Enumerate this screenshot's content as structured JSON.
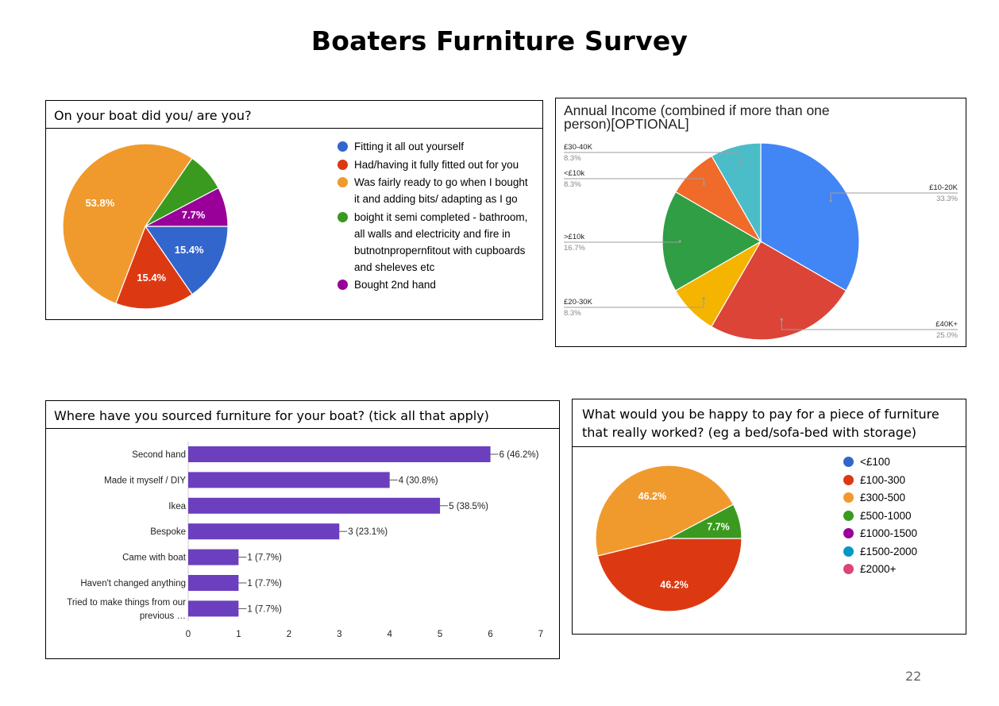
{
  "page": {
    "title": "Boaters Furniture Survey",
    "page_number": "22"
  },
  "colors": {
    "blue": "#3366cc",
    "red": "#dc3912",
    "orange": "#f09a2e",
    "green": "#3a9a1f",
    "purple": "#990099",
    "teal": "#0099c6",
    "pink": "#dd4477",
    "bar": "#6b3fbd"
  },
  "q1": {
    "question": "On your boat did you/ are you?"
  },
  "q2": {
    "question": "Annual Income (combined if more than one person)[OPTIONAL]"
  },
  "q3": {
    "question": "Where have you sourced furniture for your boat? (tick all that apply)"
  },
  "q4": {
    "question": "What would you be happy to pay for a piece of furniture that really worked? (eg a bed/sofa-bed with storage)"
  },
  "chart_data": [
    {
      "type": "pie",
      "title": "On your boat did you/ are you?",
      "labels": [
        "Fitting it all out yourself",
        "Had/having it fully fitted out for you",
        "Was fairly ready to go when I bought it and adding bits/ adapting as I go",
        "boight it semi completed - bathroom, all walls and electricity and fire in butnotnpropernfitout with cupboards and sheleves etc",
        "Bought 2nd hand"
      ],
      "legend_lines": [
        [
          "Fitting it all out yourself"
        ],
        [
          "Had/having it fully fitted out for you"
        ],
        [
          "Was fairly ready to go when I bought",
          "it and adding bits/ adapting as I go"
        ],
        [
          "boight it semi completed - bathroom,",
          "all walls and electricity and fire in",
          "butnotnpropernfitout with cupboards",
          "and sheleves etc"
        ],
        [
          "Bought 2nd hand"
        ]
      ],
      "values": [
        15.4,
        15.4,
        53.8,
        7.7,
        7.7
      ],
      "value_labels": [
        "15.4%",
        "15.4%",
        "53.8%",
        "",
        "7.7%"
      ],
      "colors": [
        "#3366cc",
        "#dc3912",
        "#f09a2e",
        "#3a9a1f",
        "#990099"
      ],
      "legend": "right"
    },
    {
      "type": "pie",
      "title": "Annual Income (combined if more than one person)[OPTIONAL]",
      "labels": [
        "£10-20K",
        "£40K+",
        "£20-30K",
        ">£10k",
        "<£10k",
        "£30-40K"
      ],
      "values": [
        33.3,
        25.0,
        8.3,
        16.7,
        8.3,
        8.3
      ],
      "value_labels": [
        "33.3%",
        "25.0%",
        "8.3%",
        "16.7%",
        "8.3%",
        "8.3%"
      ],
      "colors": [
        "#4285f4",
        "#db4437",
        "#f4b400",
        "#2f9e44",
        "#f06a2a",
        "#4bbdc8"
      ],
      "legend": "labeled"
    },
    {
      "type": "bar",
      "orientation": "horizontal",
      "title": "Where have you sourced furniture for your boat? (tick all that apply)",
      "categories": [
        "Second hand",
        "Made it myself / DIY",
        "Ikea",
        "Bespoke",
        "Came with boat",
        "Haven't changed anything",
        "Tried to make things from our previous …"
      ],
      "category_lines": [
        [
          "Second hand"
        ],
        [
          "Made it myself / DIY"
        ],
        [
          "Ikea"
        ],
        [
          "Bespoke"
        ],
        [
          "Came with boat"
        ],
        [
          "Haven't changed anything"
        ],
        [
          "Tried to make things from our",
          "previous …"
        ]
      ],
      "values": [
        6,
        4,
        5,
        3,
        1,
        1,
        1
      ],
      "value_labels": [
        "6 (46.2%)",
        "4 (30.8%)",
        "5 (38.5%)",
        "3 (23.1%)",
        "1 (7.7%)",
        "1 (7.7%)",
        "1 (7.7%)"
      ],
      "xlim": [
        0,
        7
      ],
      "xticks": [
        "0",
        "1",
        "2",
        "3",
        "4",
        "5",
        "6",
        "7"
      ],
      "color": "#6b3fbd"
    },
    {
      "type": "pie",
      "title": "What would you be happy to pay for a piece of furniture that really worked? (eg a bed/sofa-bed with storage)",
      "labels": [
        "<£100",
        "£100-300",
        "£300-500",
        "£500-1000",
        "£1000-1500",
        "£1500-2000",
        "£2000+"
      ],
      "values": [
        0,
        46.2,
        46.2,
        7.7,
        0,
        0,
        0
      ],
      "value_labels": [
        "",
        "46.2%",
        "46.2%",
        "7.7%",
        "",
        "",
        ""
      ],
      "colors": [
        "#3366cc",
        "#dc3912",
        "#f09a2e",
        "#3a9a1f",
        "#990099",
        "#0099c6",
        "#dd4477"
      ],
      "legend": "right"
    }
  ]
}
